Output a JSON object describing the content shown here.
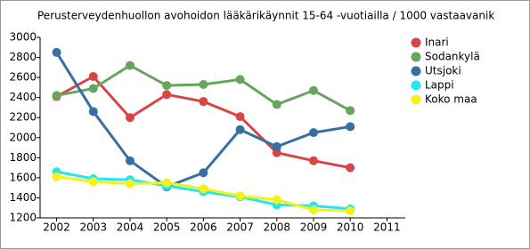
{
  "chart_data": {
    "type": "line",
    "title": "Perusterveydenhuollon avohoidon lääkärikäynnit 15-64 -vuotiailla / 1000 vastaavanik",
    "x": [
      2002,
      2003,
      2004,
      2005,
      2006,
      2007,
      2008,
      2009,
      2010,
      2011
    ],
    "xlim": [
      2001.55,
      2011.5
    ],
    "xticks": [
      2002,
      2003,
      2004,
      2005,
      2006,
      2007,
      2008,
      2009,
      2010,
      2011
    ],
    "ylim": [
      1200,
      3000
    ],
    "yticks": [
      1200,
      1400,
      1600,
      1800,
      2000,
      2200,
      2400,
      2600,
      2800,
      3000
    ],
    "grid": false,
    "legend": "right",
    "series": [
      {
        "name": "Inari",
        "color": "#d94545",
        "values": [
          2410,
          2610,
          2200,
          2430,
          2360,
          2210,
          1850,
          1770,
          1700,
          null
        ]
      },
      {
        "name": "Sodankylä",
        "color": "#66a55e",
        "values": [
          2420,
          2490,
          2720,
          2520,
          2530,
          2580,
          2330,
          2470,
          2270,
          null
        ]
      },
      {
        "name": "Utsjoki",
        "color": "#366fa3",
        "values": [
          2850,
          2260,
          1770,
          1510,
          1650,
          2080,
          1910,
          2050,
          2110,
          null
        ]
      },
      {
        "name": "Lappi",
        "color": "#22e6f2",
        "values": [
          1660,
          1590,
          1580,
          1520,
          1460,
          1410,
          1330,
          1320,
          1290,
          null
        ]
      },
      {
        "name": "Koko maa",
        "color": "#f2f21a",
        "values": [
          1610,
          1560,
          1540,
          1550,
          1490,
          1420,
          1380,
          1280,
          1270,
          null
        ]
      }
    ]
  }
}
